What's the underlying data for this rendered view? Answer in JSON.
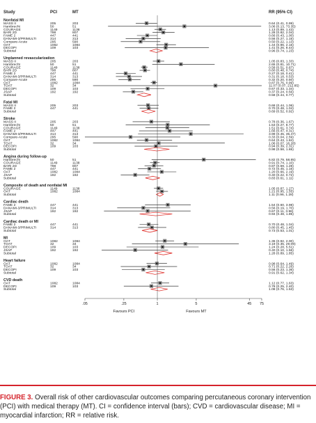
{
  "header": {
    "study": "Study",
    "pci": "PCI",
    "mt": "MT",
    "rr": "RR (95% CI)"
  },
  "x_axis": {
    "ticks": [
      ".05",
      ".25",
      "1",
      "5",
      "45",
      "75"
    ],
    "left_label": "Favours PCI",
    "right_label": "Favours MT"
  },
  "caption": {
    "label": "FIGURE 3.",
    "text": "Overall risk of other cardiovascular outcomes comparing percutaneous coronary intervention (PCI) with medical therapy (MT). CI = confidence interval (bars); CVD = cardiovascular disease; MI = myocardial infarction; RR = relative risk."
  },
  "colors": {
    "diamond": "#e0342f",
    "marker": "#555555",
    "accent": "#d5232b"
  },
  "chart_data": {
    "type": "forest",
    "xscale": "log",
    "x_ticks": [
      0.05,
      0.25,
      1,
      5,
      45,
      75
    ],
    "reference_line": 1,
    "groups": [
      {
        "name": "Nonfatal MI",
        "rows": [
          {
            "study": "MASS II",
            "pci": "205",
            "mt": "203",
            "rr": 0.64,
            "lo": 0.41,
            "hi": 0.99,
            "ci": "0.64 (0.41, 0.99)"
          },
          {
            "study": "Hambrecht",
            "pci": "50",
            "mt": "51",
            "rr": 3.06,
            "lo": 0.13,
            "hi": 73.35,
            "ci": "3.06 (0.13, 73.35)"
          },
          {
            "study": "COURAGE",
            "pci": "1149",
            "mt": "1138",
            "rr": 1.13,
            "lo": 0.89,
            "hi": 1.43,
            "ci": "1.13 (0.89, 1.43)"
          },
          {
            "study": "BARI 2D",
            "pci": "798",
            "mt": "807",
            "rr": 1.28,
            "lo": 0.82,
            "hi": 2.04,
            "ci": "1.28 (0.82, 2.04)"
          },
          {
            "study": "FAME 2",
            "pci": "447",
            "mt": "441",
            "rr": 0.66,
            "lo": 0.43,
            "hi": 1.0,
            "ci": "0.66 (0.43, 1.00)"
          },
          {
            "study": "DANAMI-3/PRIMULTI",
            "pci": "314",
            "mt": "313",
            "rr": 0.56,
            "lo": 0.27,
            "hi": 1.15,
            "ci": "0.56 (0.27, 1.15)"
          },
          {
            "study": "Compare-Acute",
            "pci": "295",
            "mt": "590",
            "rr": 0.5,
            "lo": 0.22,
            "hi": 1.13,
            "ci": "0.50 (0.22, 1.13)"
          },
          {
            "study": "OAT",
            "pci": "1082",
            "mt": "1084",
            "rr": 1.44,
            "lo": 0.96,
            "hi": 2.16,
            "ci": "1.44 (0.96, 2.16)"
          },
          {
            "study": "DECOPI",
            "pci": "109",
            "mt": "103",
            "rr": 1.41,
            "lo": 0.26,
            "hi": 8.44,
            "ci": "1.41 (0.26, 8.44)"
          },
          {
            "study": "Subtotal",
            "pci": "",
            "mt": "",
            "rr": 0.96,
            "lo": 0.74,
            "hi": 1.23,
            "ci": "0.96 (0.74, 1.23)",
            "subtotal": true
          }
        ]
      },
      {
        "name": "Unplanned revascularization",
        "rows": [
          {
            "study": "MASS II",
            "pci": "205",
            "mt": "203",
            "rr": 1.05,
            "lo": 0.83,
            "hi": 1.33,
            "ci": "1.05 (0.83, 1.33)"
          },
          {
            "study": "Hambrecht",
            "pci": "50",
            "mt": "51",
            "rr": 2.65,
            "lo": 0.81,
            "hi": 10.71,
            "ci": "2.65 (0.81, 10.71)"
          },
          {
            "study": "COURAGE",
            "pci": "1149",
            "mt": "1138",
            "rr": 0.58,
            "lo": 0.51,
            "hi": 0.67,
            "ci": "0.58 (0.51, 0.67)"
          },
          {
            "study": "BARI 2D",
            "pci": "798",
            "mt": "807",
            "rr": 0.6,
            "lo": 0.48,
            "hi": 0.74,
            "ci": "0.60 (0.48, 0.74)"
          },
          {
            "study": "FAME 2",
            "pci": "447",
            "mt": "441",
            "rr": 0.27,
            "lo": 0.18,
            "hi": 0.41,
            "ci": "0.27 (0.18, 0.41)"
          },
          {
            "study": "DANAMI-3/PRIMULTI",
            "pci": "314",
            "mt": "313",
            "rr": 0.31,
            "lo": 0.18,
            "hi": 0.53,
            "ci": "0.31 (0.18, 0.53)"
          },
          {
            "study": "Compare-Acute",
            "pci": "295",
            "mt": "590",
            "rr": 0.32,
            "lo": 0.2,
            "hi": 0.5,
            "ci": "0.32 (0.20, 0.50)"
          },
          {
            "study": "OAT",
            "pci": "1082",
            "mt": "1084",
            "rr": 0.87,
            "lo": 0.76,
            "hi": 0.99,
            "ci": "0.87 (0.76, 0.99)"
          },
          {
            "study": "TOAT",
            "pci": "32",
            "mt": "34",
            "rr": 11.07,
            "lo": 0.07,
            "hi": 212.85,
            "ci": "11.07 (0.07, 212.85)"
          },
          {
            "study": "DECOPI",
            "pci": "109",
            "mt": "103",
            "rr": 0.67,
            "lo": 0.33,
            "hi": 1.34,
            "ci": "0.67 (0.33, 1.34)"
          },
          {
            "study": "JSAP",
            "pci": "192",
            "mt": "192",
            "rr": 0.37,
            "lo": 0.24,
            "hi": 0.56,
            "ci": "0.37 (0.24, 0.56)"
          },
          {
            "study": "Subtotal",
            "pci": "",
            "mt": "",
            "rr": 0.58,
            "lo": 0.44,
            "hi": 0.77,
            "ci": "0.58 (0.44, 0.77)",
            "subtotal": true
          }
        ]
      },
      {
        "name": "Fatal MI",
        "rows": [
          {
            "study": "MASS II",
            "pci": "205",
            "mt": "203",
            "rr": 0.68,
            "lo": 0.44,
            "hi": 1.06,
            "ci": "0.68 (0.44, 1.06)"
          },
          {
            "study": "FAME 2",
            "pci": "447",
            "mt": "441",
            "rr": 0.7,
            "lo": 0.48,
            "hi": 1.04,
            "ci": "0.70 (0.48, 1.04)"
          },
          {
            "study": "Subtotal",
            "pci": "",
            "mt": "",
            "rr": 0.69,
            "lo": 0.52,
            "hi": 0.92,
            "ci": "0.69 (0.52, 0.92)",
            "subtotal": true
          }
        ]
      },
      {
        "name": "Stroke",
        "rows": [
          {
            "study": "MASS II",
            "pci": "205",
            "mt": "203",
            "rr": 0.78,
            "lo": 0.36,
            "hi": 1.67,
            "ci": "0.78 (0.36, 1.67)"
          },
          {
            "study": "Hambrecht",
            "pci": "50",
            "mt": "51",
            "rr": 1.53,
            "lo": 0.27,
            "hi": 8.77,
            "ci": "1.53 (0.27, 8.77)"
          },
          {
            "study": "COURAGE",
            "pci": "1149",
            "mt": "1138",
            "rr": 1.51,
            "lo": 0.61,
            "hi": 3.74,
            "ci": "1.51 (0.61, 3.74)"
          },
          {
            "study": "FAME 2",
            "pci": "447",
            "mt": "441",
            "rr": 1.66,
            "lo": 0.47,
            "hi": 4.31,
            "ci": "1.66 (0.47, 4.31)"
          },
          {
            "study": "DANAMI-3/PRIMULTI",
            "pci": "314",
            "mt": "313",
            "rr": 3.99,
            "lo": 0.45,
            "hi": 35.47,
            "ci": "3.99 (0.45, 35.47)"
          },
          {
            "study": "Compare-Acute",
            "pci": "295",
            "mt": "590",
            "rr": 0.33,
            "lo": 0.04,
            "hi": 2.59,
            "ci": "0.33 (0.04, 2.59)"
          },
          {
            "study": "OAT",
            "pci": "1082",
            "mt": "1084",
            "rr": 0.64,
            "lo": 0.43,
            "hi": 1.84,
            "ci": "0.64 (0.43, 1.84)"
          },
          {
            "study": "TOAT",
            "pci": "32",
            "mt": "34",
            "rr": 1.06,
            "lo": 0.07,
            "hi": 16.28,
            "ci": "1.06 (0.07, 16.28)"
          },
          {
            "study": "DECOPI",
            "pci": "109",
            "mt": "103",
            "rr": 0.94,
            "lo": 0.39,
            "hi": 2.31,
            "ci": "0.94 (0.39, 2.31)"
          },
          {
            "study": "Subtotal",
            "pci": "",
            "mt": "",
            "rr": 0.98,
            "lo": 0.58,
            "hi": 1.65,
            "ci": "0.98 (0.58, 1.65)",
            "subtotal": true
          }
        ]
      },
      {
        "name": "Angina during follow-up",
        "rows": [
          {
            "study": "Hambrecht",
            "pci": "50",
            "mt": "51",
            "rr": 6.82,
            "lo": 0.79,
            "hi": 58.85,
            "ci": "6.82 (0.79, 58.85)"
          },
          {
            "study": "COURAGE",
            "pci": "1149",
            "mt": "1138",
            "rr": 0.91,
            "lo": 0.74,
            "hi": 1.1,
            "ci": "0.91 (0.74, 1.10)"
          },
          {
            "study": "BARI 2D",
            "pci": "798",
            "mt": "807",
            "rr": 0.87,
            "lo": 0.59,
            "hi": 1.28,
            "ci": "0.87 (0.59, 1.28)"
          },
          {
            "study": "FAME 2",
            "pci": "447",
            "mt": "441",
            "rr": 0.72,
            "lo": 0.45,
            "hi": 1.16,
            "ci": "0.72 (0.45, 1.16)"
          },
          {
            "study": "OAT",
            "pci": "1082",
            "mt": "1084",
            "rr": 1.2,
            "lo": 0.66,
            "hi": 2.19,
            "ci": "1.20 (0.66, 2.19)"
          },
          {
            "study": "JSAP",
            "pci": "192",
            "mt": "192",
            "rr": 0.4,
            "lo": 0.22,
            "hi": 0.72,
            "ci": "0.40 (0.22, 0.72)"
          },
          {
            "study": "Subtotal",
            "pci": "",
            "mt": "",
            "rr": 0.83,
            "lo": 0.61,
            "hi": 1.11,
            "ci": "0.83 (0.61, 1.11)",
            "subtotal": true
          }
        ]
      },
      {
        "name": "Composite of death and nonfatal MI",
        "rows": [
          {
            "study": "COURAGE",
            "pci": "1149",
            "mt": "1138",
            "rr": 1.05,
            "lo": 0.87,
            "hi": 1.27,
            "ci": "1.05 (0.87, 1.27)"
          },
          {
            "study": "OAT",
            "pci": "1082",
            "mt": "1084",
            "rr": 1.21,
            "lo": 0.95,
            "hi": 1.55,
            "ci": "1.21 (0.95, 1.55)"
          },
          {
            "study": "Subtotal",
            "pci": "",
            "mt": "",
            "rr": 1.11,
            "lo": 0.96,
            "hi": 1.28,
            "ci": "1.11 (0.96, 1.28)",
            "subtotal": true
          }
        ]
      },
      {
        "name": "Cardiac death",
        "rows": [
          {
            "study": "FAME 2",
            "pci": "447",
            "mt": "441",
            "rr": 1.54,
            "lo": 0.6,
            "hi": 3.98,
            "ci": "1.54 (0.60, 3.98)"
          },
          {
            "study": "DANAMI-3/PRIMULTI",
            "pci": "314",
            "mt": "313",
            "rr": 0.56,
            "lo": 0.19,
            "hi": 1.7,
            "ci": "0.56 (0.19, 1.70)"
          },
          {
            "study": "JSAP",
            "pci": "192",
            "mt": "192",
            "rr": 0.67,
            "lo": 0.11,
            "hi": 3.96,
            "ci": "0.67 (0.11, 3.96)"
          },
          {
            "study": "Subtotal",
            "pci": "",
            "mt": "",
            "rr": 0.94,
            "lo": 0.48,
            "hi": 1.85,
            "ci": "0.94 (0.48, 1.85)",
            "subtotal": true
          }
        ]
      },
      {
        "name": "Cardiac death or MI",
        "rows": [
          {
            "study": "FAME 2",
            "pci": "447",
            "mt": "441",
            "rr": 0.7,
            "lo": 0.48,
            "hi": 1.04,
            "ci": "0.70 (0.48, 1.04)"
          },
          {
            "study": "DANAMI-3/PRIMULTI",
            "pci": "314",
            "mt": "313",
            "rr": 0.8,
            "lo": 0.45,
            "hi": 1.45,
            "ci": "0.80 (0.45, 1.45)"
          },
          {
            "study": "Subtotal",
            "pci": "",
            "mt": "",
            "rr": 0.73,
            "lo": 0.53,
            "hi": 1.01,
            "ci": "0.73 (0.53, 1.01)",
            "subtotal": true
          }
        ]
      },
      {
        "name": "MI",
        "rows": [
          {
            "study": "OAT",
            "pci": "1082",
            "mt": "1084",
            "rr": 1.36,
            "lo": 0.92,
            "hi": 2.0,
            "ci": "1.36 (0.92, 2.00)"
          },
          {
            "study": "TOAT",
            "pci": "32",
            "mt": "34",
            "rr": 3.19,
            "lo": 0.35,
            "hi": 29.09,
            "ci": "3.19 (0.35, 29.09)"
          },
          {
            "study": "DECOPI",
            "pci": "109",
            "mt": "103",
            "rr": 1.24,
            "lo": 0.28,
            "hi": 5.51,
            "ci": "1.24 (0.28, 5.51)"
          },
          {
            "study": "JSAP",
            "pci": "192",
            "mt": "192",
            "rr": 0.4,
            "lo": 0.1,
            "hi": 1.56,
            "ci": "0.40 (0.10, 1.56)"
          },
          {
            "study": "Subtotal",
            "pci": "",
            "mt": "",
            "rr": 1.28,
            "lo": 0.89,
            "hi": 1.85,
            "ci": "1.28 (0.89, 1.85)",
            "subtotal": true
          }
        ]
      },
      {
        "name": "Heart failure",
        "rows": [
          {
            "study": "OAT",
            "pci": "1082",
            "mt": "1084",
            "rr": 0.98,
            "lo": 0.64,
            "hi": 1.49,
            "ci": "0.98 (0.64, 1.49)"
          },
          {
            "study": "TOAT",
            "pci": "32",
            "mt": "34",
            "rr": 0.71,
            "lo": 0.22,
            "hi": 2.26,
            "ci": "0.71 (0.22, 2.26)"
          },
          {
            "study": "DECOPI",
            "pci": "109",
            "mt": "103",
            "rr": 0.56,
            "lo": 0.23,
            "hi": 1.36,
            "ci": "0.56 (0.23, 1.36)"
          },
          {
            "study": "Subtotal",
            "pci": "",
            "mt": "",
            "rr": 0.91,
            "lo": 0.62,
            "hi": 1.34,
            "ci": "0.91 (0.62, 1.34)",
            "subtotal": true
          }
        ]
      },
      {
        "name": "CVD death",
        "rows": [
          {
            "study": "OAT",
            "pci": "1082",
            "mt": "1084",
            "rr": 1.12,
            "lo": 0.77,
            "hi": 1.63,
            "ci": "1.12 (0.77, 1.63)"
          },
          {
            "study": "DECOPI",
            "pci": "109",
            "mt": "103",
            "rr": 0.78,
            "lo": 0.25,
            "hi": 2.4,
            "ci": "0.78 (0.25, 2.40)"
          },
          {
            "study": "Subtotal",
            "pci": "",
            "mt": "",
            "rr": 1.08,
            "lo": 0.76,
            "hi": 1.53,
            "ci": "1.08 (0.76, 1.53)",
            "subtotal": true
          }
        ]
      }
    ]
  }
}
